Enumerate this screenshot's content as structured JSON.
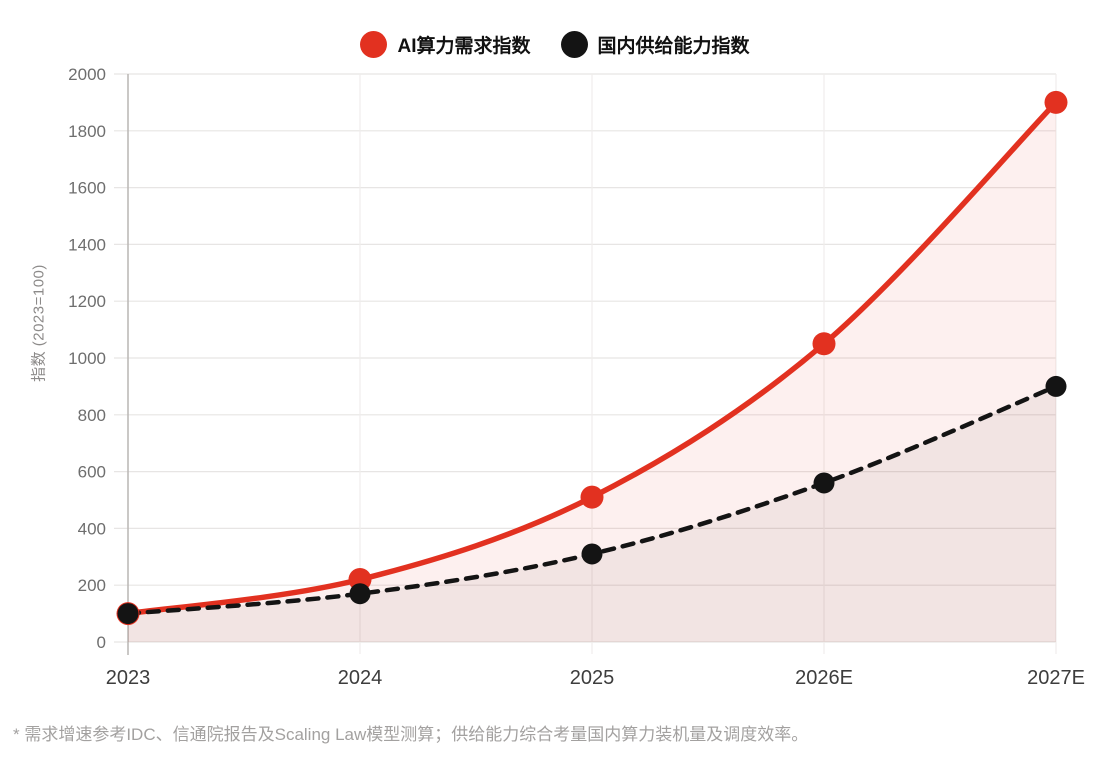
{
  "chart_data": {
    "type": "line",
    "categories": [
      "2023",
      "2024",
      "2025",
      "2026E",
      "2027E"
    ],
    "series": [
      {
        "name": "AI算力需求指数",
        "values": [
          100,
          220,
          510,
          1050,
          1900
        ],
        "color": "#e23120",
        "line_style": "solid",
        "line_width": 5.5,
        "marker_radius": 11.5,
        "area_fill": "rgba(226,49,32,0.07)"
      },
      {
        "name": "国内供给能力指数",
        "values": [
          100,
          170,
          310,
          560,
          900
        ],
        "color": "#141414",
        "line_style": "dashed",
        "line_width": 4.5,
        "marker_radius": 10.5,
        "area_fill": "rgba(35,25,22,0.05)"
      }
    ],
    "title": "",
    "xlabel": "",
    "ylabel": "指数 (2023=100)",
    "ylim": [
      0,
      2000
    ],
    "ytick_step": 200,
    "yticks": [
      "0",
      "200",
      "400",
      "600",
      "800",
      "1000",
      "1200",
      "1400",
      "1600",
      "1800",
      "2000"
    ],
    "grid": true,
    "legend_position": "top-center",
    "footnote": "* 需求增速参考IDC、信通院报告及Scaling Law模型测算；供给能力综合考量国内算力装机量及调度效率。",
    "axis_colors": {
      "grid_h": "#e7e5e4",
      "grid_v": "#efedec",
      "axis_line": "#b9b6b4"
    }
  }
}
